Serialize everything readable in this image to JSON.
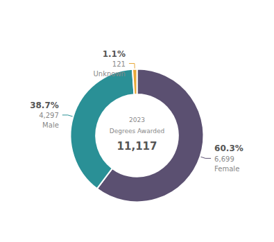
{
  "chart_data": {
    "type": "pie",
    "categories": [
      "Female",
      "Male",
      "Unknown"
    ],
    "values": [
      6699,
      4297,
      121
    ],
    "value_labels": [
      "6,699",
      "4,297",
      "121"
    ],
    "shares": [
      60.3,
      38.7,
      1.1
    ],
    "share_labels": [
      "60.3%",
      "38.7%",
      "1.1%"
    ],
    "colors": [
      "#5b5071",
      "#2a9096",
      "#e8a838"
    ],
    "data_labels": true,
    "annotations": [
      "2023",
      "Degrees Awarded",
      "11,117"
    ]
  }
}
